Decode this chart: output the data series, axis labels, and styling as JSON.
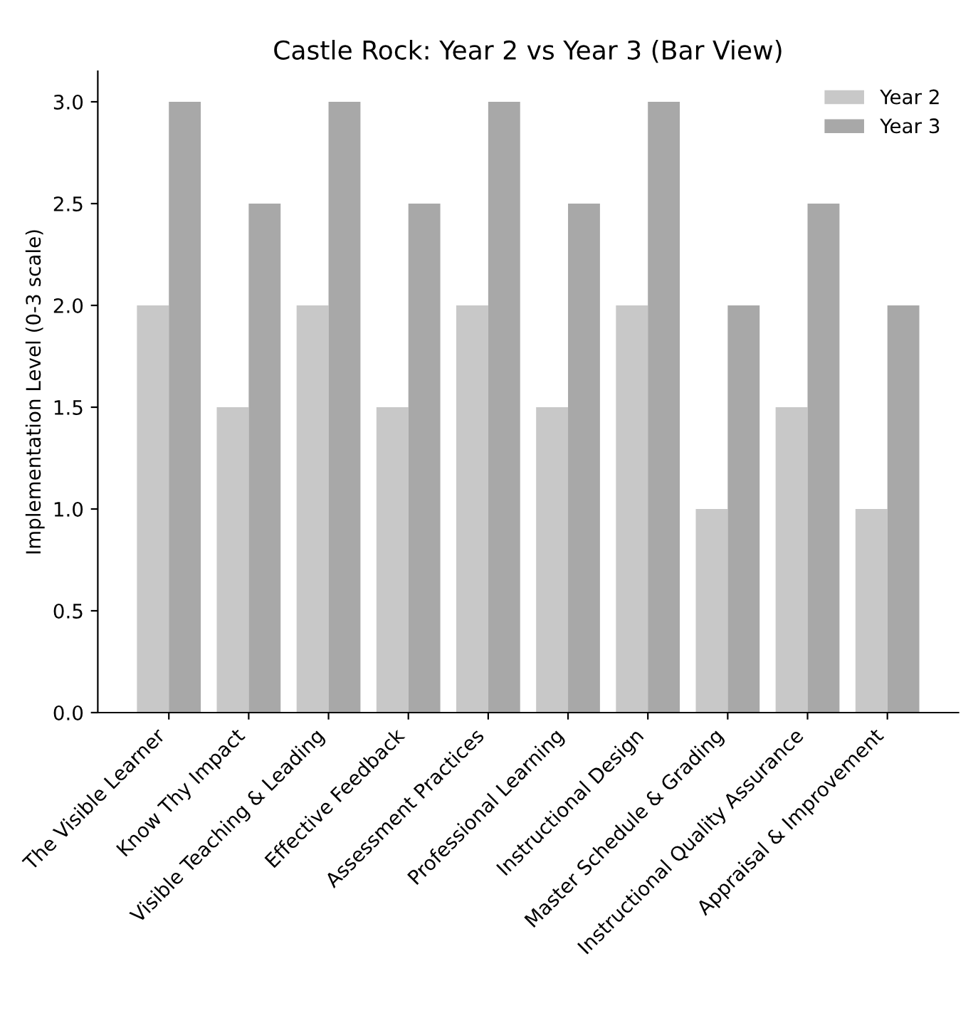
{
  "chart_data": {
    "type": "bar",
    "title": "Castle Rock: Year 2 vs Year 3 (Bar View)",
    "ylabel": "Implementation Level (0-3 scale)",
    "categories": [
      "The Visible Learner",
      "Know Thy Impact",
      "Visible Teaching & Leading",
      "Effective Feedback",
      "Assessment Practices",
      "Professional Learning",
      "Instructional Design",
      "Master Schedule & Grading",
      "Instructional Quality Assurance",
      "Appraisal & Improvement"
    ],
    "series": [
      {
        "name": "Year 2",
        "color": "#c8c8c8",
        "values": [
          2,
          1.5,
          2,
          1.5,
          2,
          1.5,
          2,
          1,
          1.5,
          1
        ]
      },
      {
        "name": "Year 3",
        "color": "#a8a8a8",
        "values": [
          3,
          2.5,
          3,
          2.5,
          3,
          2.5,
          3,
          2,
          2.5,
          2
        ]
      }
    ],
    "ylim": [
      0,
      3.15
    ],
    "yticks": [
      {
        "value": 0,
        "label": "0.0"
      },
      0.5,
      {
        "value": 1,
        "label": "1.0"
      },
      1.5,
      {
        "value": 2,
        "label": "2.0"
      },
      2.5,
      {
        "value": 3,
        "label": "3.0"
      }
    ],
    "grid": false,
    "legend": "top right"
  }
}
